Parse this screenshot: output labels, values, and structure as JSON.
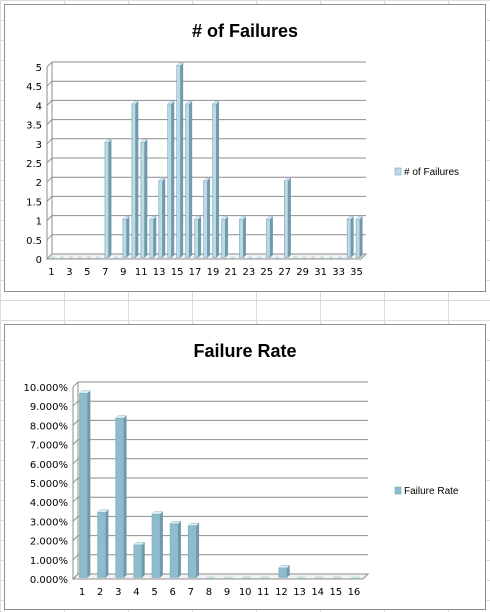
{
  "chart_data": [
    {
      "type": "bar",
      "title": "# of Failures",
      "categories": [
        "1",
        "2",
        "3",
        "4",
        "5",
        "6",
        "7",
        "8",
        "9",
        "10",
        "11",
        "12",
        "13",
        "14",
        "15",
        "16",
        "17",
        "18",
        "19",
        "20",
        "21",
        "22",
        "23",
        "24",
        "25",
        "26",
        "27",
        "28",
        "29",
        "30",
        "31",
        "32",
        "33",
        "34",
        "35"
      ],
      "x_tick_labels": [
        "1",
        "3",
        "5",
        "7",
        "9",
        "11",
        "13",
        "15",
        "17",
        "19",
        "21",
        "23",
        "25",
        "27",
        "29",
        "31",
        "33",
        "35"
      ],
      "series": [
        {
          "name": "# of Failures",
          "values": [
            0,
            0,
            0,
            0,
            0,
            0,
            3,
            0,
            1,
            4,
            3,
            1,
            2,
            4,
            5,
            4,
            1,
            2,
            4,
            1,
            0,
            1,
            0,
            0,
            1,
            0,
            2,
            0,
            0,
            0,
            0,
            0,
            0,
            1,
            1
          ]
        }
      ],
      "ylim": [
        0,
        5
      ],
      "y_ticks": [
        0,
        0.5,
        1,
        1.5,
        2,
        2.5,
        3,
        3.5,
        4,
        4.5,
        5
      ],
      "y_tick_labels": [
        "0",
        "0.5",
        "1",
        "1.5",
        "2",
        "2.5",
        "3",
        "3.5",
        "4",
        "4.5",
        "5"
      ],
      "grid": true,
      "legend_position": "right",
      "color": "#bcd9e4"
    },
    {
      "type": "bar",
      "title": "Failure Rate",
      "categories": [
        "1",
        "2",
        "3",
        "4",
        "5",
        "6",
        "7",
        "8",
        "9",
        "10",
        "11",
        "12",
        "13",
        "14",
        "15",
        "16"
      ],
      "x_tick_labels": [
        "1",
        "2",
        "3",
        "4",
        "5",
        "6",
        "7",
        "8",
        "9",
        "10",
        "11",
        "12",
        "13",
        "14",
        "15",
        "16"
      ],
      "series": [
        {
          "name": "Failure Rate",
          "values": [
            9.6,
            3.4,
            8.3,
            1.7,
            3.3,
            2.8,
            2.7,
            0,
            0,
            0,
            0,
            0.5,
            0,
            0,
            0,
            0
          ]
        }
      ],
      "ylim": [
        0,
        10
      ],
      "y_ticks": [
        0,
        1,
        2,
        3,
        4,
        5,
        6,
        7,
        8,
        9,
        10
      ],
      "y_tick_labels": [
        "0.000%",
        "1.000%",
        "2.000%",
        "3.000%",
        "4.000%",
        "5.000%",
        "6.000%",
        "7.000%",
        "8.000%",
        "9.000%",
        "10.000%"
      ],
      "grid": true,
      "legend_position": "right",
      "color": "#8fbccd"
    }
  ]
}
